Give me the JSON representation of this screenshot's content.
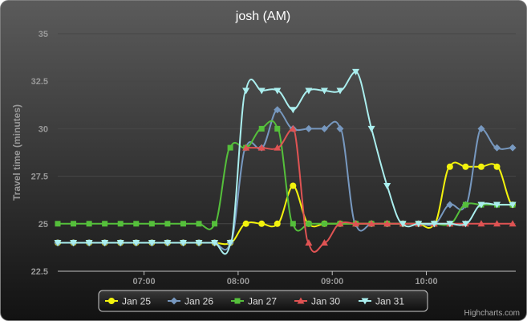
{
  "chart_data": {
    "type": "line",
    "title": "josh (AM)",
    "ylabel": "Travel time (minutes)",
    "xlabel": "",
    "ylim": [
      22.5,
      35
    ],
    "y_ticks": [
      22.5,
      25,
      27.5,
      30,
      32.5,
      35
    ],
    "y_tick_labels": [
      "22.5",
      "25",
      "27.5",
      "30",
      "32.5",
      "35"
    ],
    "xlim": [
      "06:05",
      "10:57"
    ],
    "x_ticks": [
      "07:00",
      "08:00",
      "09:00",
      "10:00"
    ],
    "grid": true,
    "legend_position": "bottom-center",
    "series": [
      {
        "name": "Jan 25",
        "color": "#f2f20d",
        "marker": "circle",
        "x": [
          "06:05",
          "06:15",
          "06:25",
          "06:35",
          "06:45",
          "06:55",
          "07:05",
          "07:15",
          "07:25",
          "07:35",
          "07:45",
          "07:55",
          "08:05",
          "08:15",
          "08:25",
          "08:35",
          "08:45",
          "08:55",
          "09:05",
          "09:15",
          "09:25",
          "09:35",
          "09:45",
          "09:55",
          "10:05",
          "10:15",
          "10:25",
          "10:35",
          "10:45",
          "10:55"
        ],
        "values": [
          24,
          24,
          24,
          24,
          24,
          24,
          24,
          24,
          24,
          24,
          24,
          24,
          25,
          25,
          25,
          27,
          25,
          25,
          25,
          25,
          25,
          25,
          25,
          25,
          25,
          28,
          28,
          28,
          28,
          26
        ]
      },
      {
        "name": "Jan 26",
        "color": "#7798bf",
        "marker": "diamond",
        "x": [
          "06:05",
          "06:15",
          "06:25",
          "06:35",
          "06:45",
          "06:55",
          "07:05",
          "07:15",
          "07:25",
          "07:35",
          "07:45",
          "07:55",
          "08:05",
          "08:15",
          "08:25",
          "08:35",
          "08:45",
          "08:55",
          "09:05",
          "09:15",
          "09:25",
          "09:35",
          "09:45",
          "09:55",
          "10:05",
          "10:15",
          "10:25",
          "10:35",
          "10:45",
          "10:55"
        ],
        "values": [
          24,
          24,
          24,
          24,
          24,
          24,
          24,
          24,
          24,
          24,
          24,
          24,
          29,
          29,
          31,
          30,
          30,
          30,
          30,
          25,
          25,
          25,
          25,
          25,
          25,
          26,
          26,
          30,
          29,
          29
        ]
      },
      {
        "name": "Jan 27",
        "color": "#55bf3b",
        "marker": "square",
        "x": [
          "06:05",
          "06:15",
          "06:25",
          "06:35",
          "06:45",
          "06:55",
          "07:05",
          "07:15",
          "07:25",
          "07:35",
          "07:45",
          "07:55",
          "08:05",
          "08:15",
          "08:25",
          "08:35",
          "08:45",
          "08:55",
          "09:05",
          "09:15",
          "09:25",
          "09:35",
          "09:45",
          "09:55",
          "10:05",
          "10:15",
          "10:25",
          "10:35",
          "10:45",
          "10:55"
        ],
        "values": [
          25,
          25,
          25,
          25,
          25,
          25,
          25,
          25,
          25,
          25,
          25,
          29,
          29,
          30,
          30,
          25,
          25,
          25,
          25,
          25,
          25,
          25,
          25,
          25,
          25,
          25,
          26,
          26,
          26,
          26
        ]
      },
      {
        "name": "Jan 30",
        "color": "#df5353",
        "marker": "triangle",
        "x": [
          "08:05",
          "08:15",
          "08:25",
          "08:35",
          "08:45",
          "08:55",
          "09:05",
          "09:15",
          "09:25",
          "09:35",
          "09:45",
          "09:55",
          "10:05",
          "10:15",
          "10:25",
          "10:35",
          "10:45",
          "10:55"
        ],
        "values": [
          29,
          29,
          29,
          30,
          24,
          24,
          25,
          25,
          25,
          25,
          25,
          25,
          25,
          25,
          25,
          25,
          25,
          25
        ]
      },
      {
        "name": "Jan 31",
        "color": "#aaeeee",
        "marker": "triangle-down",
        "x": [
          "06:05",
          "06:15",
          "06:25",
          "06:35",
          "06:45",
          "06:55",
          "07:05",
          "07:15",
          "07:25",
          "07:35",
          "07:45",
          "07:55",
          "08:05",
          "08:15",
          "08:25",
          "08:35",
          "08:45",
          "08:55",
          "09:05",
          "09:15",
          "09:25",
          "09:35",
          "09:45",
          "09:55",
          "10:05",
          "10:15",
          "10:25",
          "10:35",
          "10:45",
          "10:55"
        ],
        "values": [
          24,
          24,
          24,
          24,
          24,
          24,
          24,
          24,
          24,
          24,
          24,
          24,
          32,
          32,
          32,
          31,
          32,
          32,
          32,
          33,
          30,
          27,
          25,
          25,
          25,
          25,
          25,
          26,
          26,
          26
        ]
      }
    ]
  },
  "credits": "Highcharts.com",
  "colors": {
    "background_top": "#5a5a5a",
    "background_bottom": "#111111",
    "text": "#ffffff",
    "axis_text": "#999999",
    "grid": "#444444",
    "legend_border": "#cccccc"
  }
}
